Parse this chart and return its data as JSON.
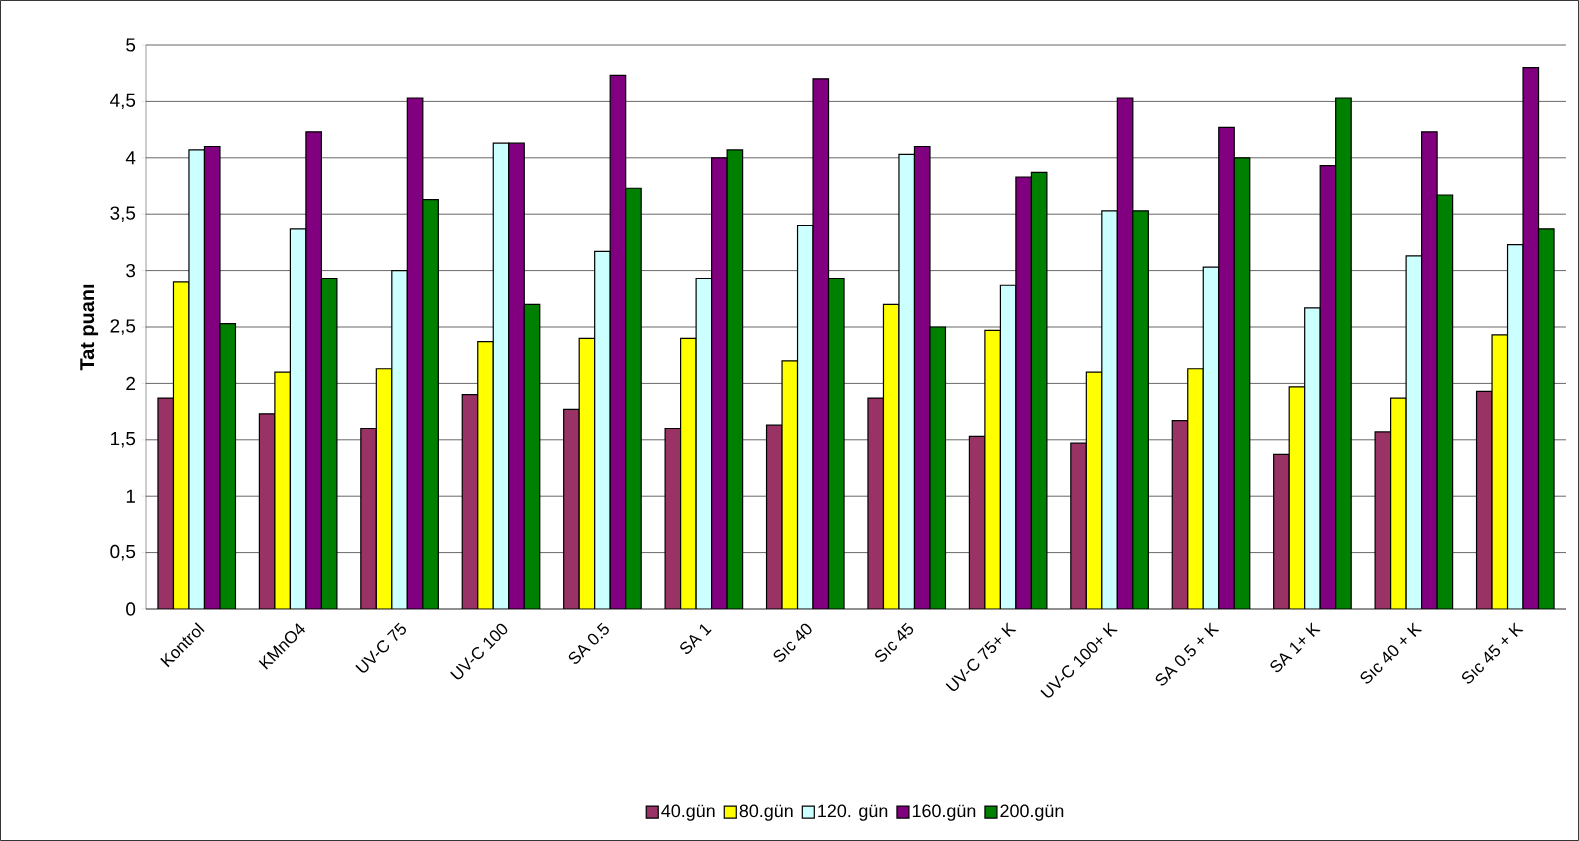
{
  "chart_data": {
    "type": "bar",
    "ylabel": "**Tat puanı**",
    "categories": [
      "Kontrol",
      "KMnO4",
      "UV-C 75",
      "UV-C 100",
      "SA 0.5",
      "SA 1",
      "Sıc 40",
      "Sıc 45",
      "UV-C 75+ K",
      "UV-C 100+ K",
      "SA 0.5 + K",
      "SA 1+ K",
      "Sıc 40 + K",
      "Sıc 45 + K"
    ],
    "series": [
      {
        "name": "40.gün",
        "color": "#993366",
        "values": [
          1.87,
          1.73,
          1.6,
          1.9,
          1.77,
          1.6,
          1.63,
          1.87,
          1.53,
          1.47,
          1.67,
          1.37,
          1.57,
          1.93
        ]
      },
      {
        "name": "80.gün",
        "color": "#ffff00",
        "values": [
          2.9,
          2.1,
          2.13,
          2.37,
          2.4,
          2.4,
          2.2,
          2.7,
          2.47,
          2.1,
          2.13,
          1.97,
          1.87,
          2.43
        ]
      },
      {
        "name": "120. gün",
        "color": "#ccffff",
        "values": [
          4.07,
          3.37,
          3.0,
          4.13,
          3.17,
          2.93,
          3.4,
          4.03,
          2.87,
          3.53,
          3.03,
          2.67,
          3.13,
          3.23
        ]
      },
      {
        "name": "160.gün",
        "color": "#800080",
        "values": [
          4.1,
          4.23,
          4.53,
          4.13,
          4.73,
          4.0,
          4.7,
          4.1,
          3.83,
          4.53,
          4.27,
          3.93,
          4.23,
          4.8
        ]
      },
      {
        "name": "200.gün",
        "color": "#008000",
        "values": [
          2.53,
          2.93,
          3.63,
          2.7,
          3.73,
          4.07,
          2.93,
          2.5,
          3.87,
          3.53,
          4.0,
          4.53,
          3.67,
          3.37
        ]
      }
    ],
    "ylim": [
      0,
      5
    ],
    "yticks": [
      0,
      {
        "value": 0.5,
        "label": "0,5"
      },
      1,
      {
        "value": 1.5,
        "label": "1,5"
      },
      2,
      {
        "value": 2.5,
        "label": "2,5"
      },
      3,
      {
        "value": 3.5,
        "label": "3,5"
      },
      4,
      {
        "value": 4.5,
        "label": "4,5"
      },
      5
    ],
    "grid": "y",
    "legend": "bottom"
  }
}
